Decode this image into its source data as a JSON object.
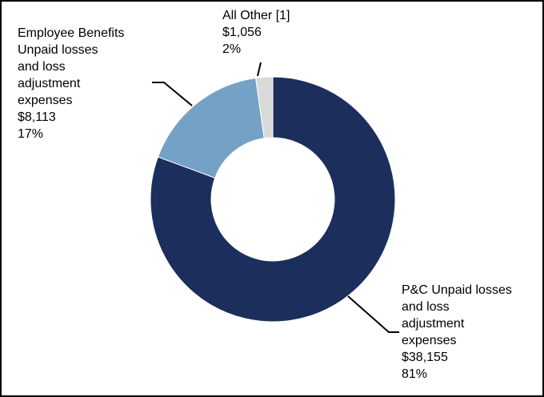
{
  "chart_data": {
    "type": "pie",
    "variant": "donut",
    "slices": [
      {
        "label": "P&C Unpaid losses and loss adjustment expenses",
        "label_lines": [
          "P&C Unpaid losses",
          "and loss",
          "adjustment",
          "expenses"
        ],
        "value": 38155,
        "value_text": "$38,155",
        "percent_text": "81%",
        "color": "#1c2e5c"
      },
      {
        "label": "Employee Benefits Unpaid losses and loss adjustment expenses",
        "label_lines": [
          "Employee Benefits",
          "Unpaid losses",
          "and loss",
          "adjustment",
          "expenses"
        ],
        "value": 8113,
        "value_text": "$8,113",
        "percent_text": "17%",
        "color": "#73a2c6"
      },
      {
        "label": "All Other [1]",
        "label_lines": [
          "All Other [1]"
        ],
        "value": 1056,
        "value_text": "$1,056",
        "percent_text": "2%",
        "color": "#d9d9d9"
      }
    ],
    "start_angle": "12 o'clock",
    "direction": "clockwise",
    "legend": "none"
  }
}
